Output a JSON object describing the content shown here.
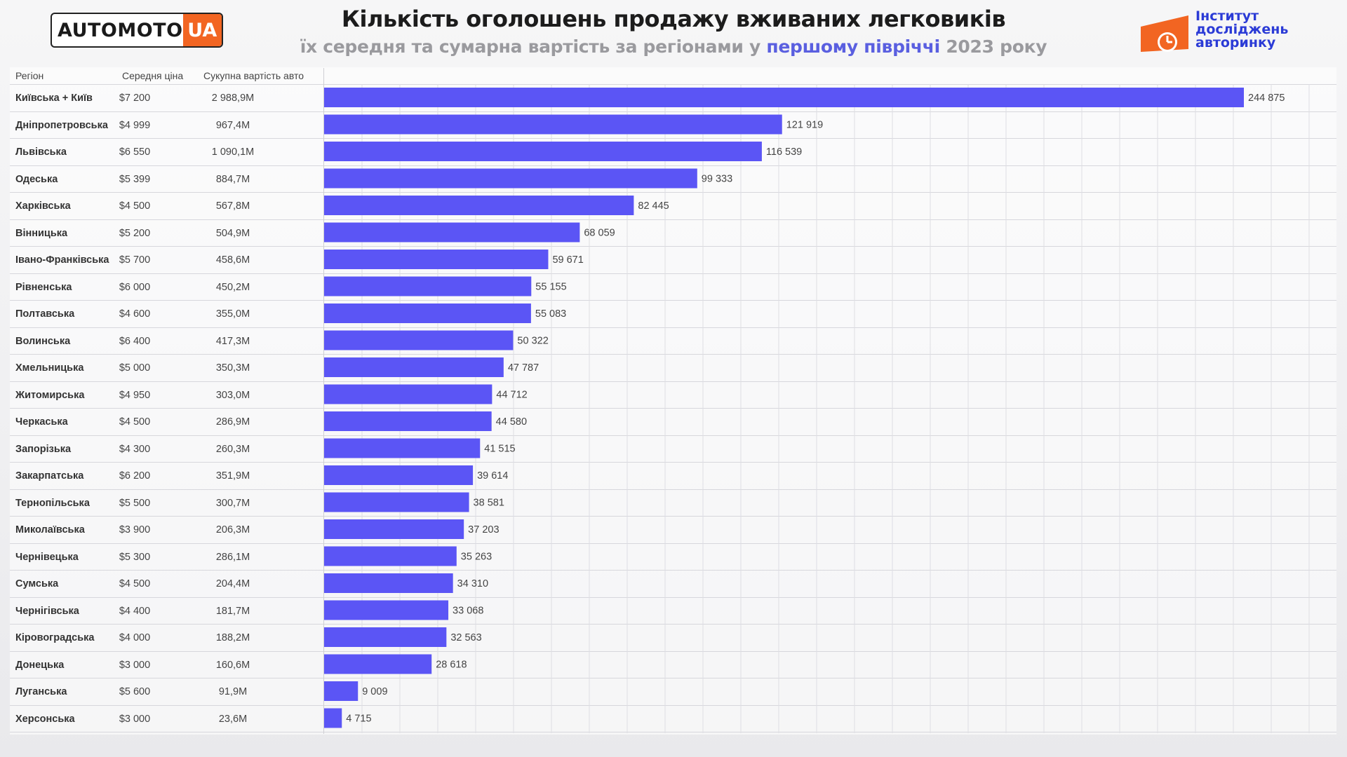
{
  "header": {
    "logo_word": "AUTOMOTO",
    "logo_badge": "UA",
    "title": "Кількість оголошень продажу вживаних легковиків",
    "subtitle_pre": "їх середня та сумарна вартість за регіонами у ",
    "subtitle_hl": "першому півріччі",
    "subtitle_post": " 2023 року",
    "institute_line1": "Інститут",
    "institute_line2": "досліджень",
    "institute_line3": "авторинку"
  },
  "colors": {
    "bar": "#5b55f5",
    "accent": "#f26522",
    "highlight": "#5a5fe0",
    "institute": "#2b3bd6"
  },
  "table": {
    "col_region": "Регіон",
    "col_avg": "Середня ціна",
    "col_sum": "Сукупна вартість авто"
  },
  "chart_data": {
    "type": "bar",
    "orientation": "horizontal",
    "title": "Кількість оголошень продажу вживаних легковиків",
    "categories": [
      "Київська + Київ",
      "Дніпропетровська",
      "Львівська",
      "Одеська",
      "Харківська",
      "Вінницька",
      "Івано-Франківська",
      "Рівненська",
      "Полтавська",
      "Волинська",
      "Хмельницька",
      "Житомирська",
      "Черкаська",
      "Запорізька",
      "Закарпатська",
      "Тернопільська",
      "Миколаївська",
      "Чернівецька",
      "Сумська",
      "Чернігівська",
      "Кіровоградська",
      "Донецька",
      "Луганська",
      "Херсонська"
    ],
    "values": [
      244875,
      121919,
      116539,
      99333,
      82445,
      68059,
      59671,
      55155,
      55083,
      50322,
      47787,
      44712,
      44580,
      41515,
      39614,
      38581,
      37203,
      35263,
      34310,
      33068,
      32563,
      28618,
      9009,
      4715
    ],
    "value_labels": [
      "244 875",
      "121 919",
      "116 539",
      "99 333",
      "82 445",
      "68 059",
      "59 671",
      "55 155",
      "55 083",
      "50 322",
      "47 787",
      "44 712",
      "44 580",
      "41 515",
      "39 614",
      "38 581",
      "37 203",
      "35 263",
      "34 310",
      "33 068",
      "32 563",
      "28 618",
      "9 009",
      "4 715"
    ],
    "avg_price": [
      "$7 200",
      "$4 999",
      "$6 550",
      "$5 399",
      "$4 500",
      "$5 200",
      "$5 700",
      "$6 000",
      "$4 600",
      "$6 400",
      "$5 000",
      "$4 950",
      "$4 500",
      "$4 300",
      "$6 200",
      "$5 500",
      "$3 900",
      "$5 300",
      "$4 500",
      "$4 400",
      "$4 000",
      "$3 000",
      "$5 600",
      "$3 000"
    ],
    "total_value": [
      "2 988,9M",
      "967,4M",
      "1 090,1M",
      "884,7M",
      "567,8M",
      "504,9M",
      "458,6M",
      "450,2M",
      "355,0M",
      "417,3M",
      "350,3M",
      "303,0M",
      "286,9M",
      "260,3M",
      "351,9M",
      "300,7M",
      "206,3M",
      "286,1M",
      "204,4M",
      "181,7M",
      "188,2M",
      "160,6M",
      "91,9M",
      "23,6M"
    ],
    "xlim": [
      0,
      260000
    ],
    "grid": true,
    "legend": "none"
  }
}
